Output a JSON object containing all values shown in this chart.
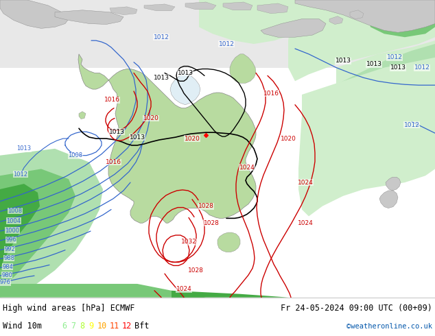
{
  "title_left": "High wind areas [hPa] ECMWF",
  "title_right": "Fr 24-05-2024 09:00 UTC (00+09)",
  "subtitle_label": "Wind 10m",
  "bft_labels": [
    "6",
    "7",
    "8",
    "9",
    "10",
    "11",
    "12",
    "Bft"
  ],
  "bft_colors": [
    "#90ee90",
    "#90ee90",
    "#adff2f",
    "#ffff00",
    "#ffa500",
    "#ff4500",
    "#ff0000",
    "#000000"
  ],
  "watermark": "©weatheronline.co.uk",
  "figsize": [
    6.34,
    4.9
  ],
  "dpi": 100,
  "map_bg": "#e0eef5",
  "land_bg": "#f0f0f0",
  "bottom_bar_color": "#ffffff",
  "font_color": "#000000",
  "blue": "#3366cc",
  "red": "#cc0000",
  "black": "#000000",
  "aus_green": "#b8dba0",
  "light_green1": "#d0eecc",
  "light_green2": "#b0e0b0",
  "med_green": "#78c878",
  "dark_green": "#44aa44",
  "aus_xlim": [
    60,
    160
  ],
  "aus_ylim": [
    -50,
    10
  ]
}
